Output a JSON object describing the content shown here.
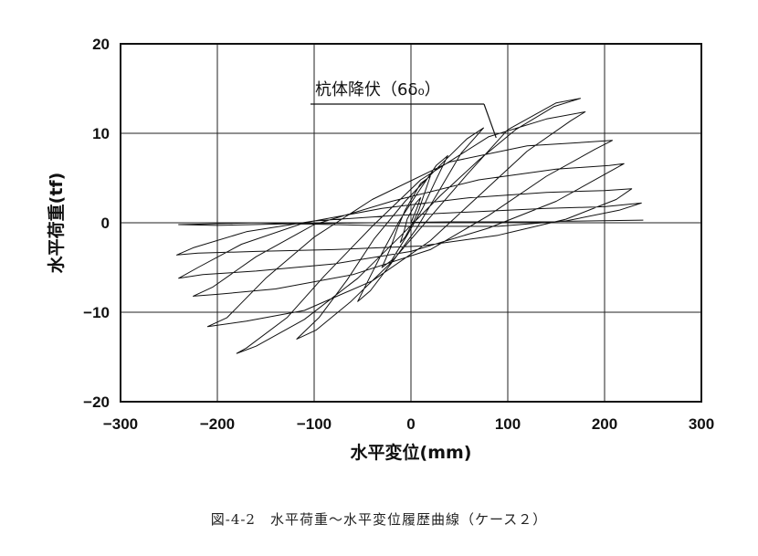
{
  "caption": "図-4-2　水平荷重〜水平変位履歴曲線（ケース２）",
  "chart_data": {
    "type": "line",
    "xlabel": "水平変位(mm)",
    "ylabel": "水平荷重(tf)",
    "xlim": [
      -300,
      300
    ],
    "ylim": [
      -20,
      20
    ],
    "xticks": [
      -300,
      -200,
      -100,
      0,
      100,
      200,
      300
    ],
    "yticks": [
      -20,
      -10,
      0,
      10,
      20
    ],
    "xtick_labels": [
      "−300",
      "−200",
      "−100",
      "0",
      "100",
      "200",
      "300"
    ],
    "ytick_labels": [
      "20",
      "10",
      "0",
      "−10",
      "−20"
    ],
    "grid": true,
    "annotation": {
      "text": "杭体降伏（6δ₀）",
      "point": [
        88,
        9.5
      ]
    },
    "series": [
      {
        "values": [
          [
            0,
            0
          ],
          [
            6,
            1.6
          ],
          [
            10,
            2.8
          ],
          [
            5,
            2.2
          ],
          [
            -4,
            0.4
          ],
          [
            -7,
            -0.9
          ],
          [
            -11,
            -2.2
          ],
          [
            -6,
            -1.6
          ],
          [
            3,
            0.2
          ],
          [
            8,
            1.4
          ],
          [
            13,
            3.0
          ],
          [
            20,
            5.2
          ],
          [
            10,
            4.4
          ],
          [
            -6,
            1.4
          ],
          [
            -14,
            -0.6
          ],
          [
            -21,
            -2.8
          ],
          [
            -30,
            -5.0
          ],
          [
            -20,
            -4.2
          ],
          [
            -4,
            -1.4
          ],
          [
            12,
            1.6
          ],
          [
            25,
            4.6
          ],
          [
            38,
            7.5
          ],
          [
            26,
            6.4
          ],
          [
            6,
            3.2
          ],
          [
            -12,
            0.2
          ],
          [
            -28,
            -3.0
          ],
          [
            -44,
            -6.4
          ],
          [
            -55,
            -8.8
          ],
          [
            -42,
            -7.6
          ],
          [
            -18,
            -4.2
          ],
          [
            6,
            -0.6
          ],
          [
            28,
            3.4
          ],
          [
            52,
            7.8
          ],
          [
            75,
            10.6
          ],
          [
            58,
            9.4
          ],
          [
            28,
            6.2
          ],
          [
            -6,
            2.4
          ],
          [
            -38,
            -1.8
          ],
          [
            -66,
            -6.4
          ],
          [
            -95,
            -10.6
          ],
          [
            -118,
            -13.0
          ],
          [
            -98,
            -12.0
          ],
          [
            -62,
            -8.8
          ],
          [
            -22,
            -4.6
          ],
          [
            18,
            0.4
          ],
          [
            58,
            5.4
          ],
          [
            100,
            10.4
          ],
          [
            150,
            13.4
          ],
          [
            175,
            13.9
          ],
          [
            148,
            13.0
          ],
          [
            108,
            10.4
          ],
          [
            70,
            7.0
          ],
          [
            30,
            3.0
          ],
          [
            -10,
            -1.4
          ],
          [
            -55,
            -6.2
          ],
          [
            -110,
            -10.8
          ],
          [
            -160,
            -13.8
          ],
          [
            -180,
            -14.6
          ],
          [
            -170,
            -14.0
          ],
          [
            -128,
            -10.6
          ],
          [
            -90,
            -6.0
          ],
          [
            -40,
            -0.4
          ],
          [
            10,
            4.8
          ],
          [
            80,
            9.6
          ],
          [
            140,
            11.6
          ],
          [
            180,
            12.4
          ],
          [
            165,
            11.4
          ],
          [
            120,
            8.0
          ],
          [
            70,
            3.0
          ],
          [
            20,
            -2.0
          ],
          [
            -40,
            -6.5
          ],
          [
            -110,
            -9.8
          ],
          [
            -170,
            -11.0
          ],
          [
            -210,
            -11.6
          ],
          [
            -190,
            -10.6
          ],
          [
            -150,
            -6.2
          ],
          [
            -100,
            -1.6
          ],
          [
            -40,
            2.6
          ],
          [
            40,
            6.8
          ],
          [
            120,
            8.6
          ],
          [
            180,
            9.0
          ],
          [
            208,
            9.2
          ],
          [
            190,
            8.2
          ],
          [
            140,
            5.2
          ],
          [
            80,
            0.8
          ],
          [
            20,
            -3.0
          ],
          [
            -60,
            -5.8
          ],
          [
            -140,
            -7.4
          ],
          [
            -200,
            -8.0
          ],
          [
            -225,
            -8.2
          ],
          [
            -205,
            -7.2
          ],
          [
            -160,
            -3.8
          ],
          [
            -100,
            -0.2
          ],
          [
            -20,
            2.4
          ],
          [
            70,
            4.8
          ],
          [
            150,
            6.0
          ],
          [
            205,
            6.4
          ],
          [
            220,
            6.6
          ],
          [
            200,
            5.4
          ],
          [
            150,
            2.4
          ],
          [
            80,
            -0.6
          ],
          [
            0,
            -3.2
          ],
          [
            -80,
            -4.6
          ],
          [
            -160,
            -5.4
          ],
          [
            -215,
            -5.8
          ],
          [
            -240,
            -6.2
          ],
          [
            -220,
            -5.0
          ],
          [
            -175,
            -2.4
          ],
          [
            -110,
            0.0
          ],
          [
            -30,
            1.6
          ],
          [
            60,
            2.8
          ],
          [
            140,
            3.4
          ],
          [
            200,
            3.6
          ],
          [
            228,
            3.8
          ],
          [
            212,
            2.6
          ],
          [
            160,
            0.4
          ],
          [
            90,
            -1.4
          ],
          [
            10,
            -2.6
          ],
          [
            -80,
            -3.0
          ],
          [
            -160,
            -3.2
          ],
          [
            -220,
            -3.4
          ],
          [
            -242,
            -3.6
          ],
          [
            -225,
            -2.8
          ],
          [
            -170,
            -1.0
          ],
          [
            -100,
            0.2
          ],
          [
            -20,
            0.8
          ],
          [
            60,
            1.2
          ],
          [
            140,
            1.6
          ],
          [
            200,
            1.8
          ],
          [
            238,
            2.2
          ],
          [
            215,
            1.4
          ],
          [
            160,
            0.2
          ],
          [
            90,
            -0.4
          ],
          [
            0,
            -0.4
          ],
          [
            -80,
            -0.2
          ],
          [
            -160,
            0.0
          ],
          [
            -240,
            -0.2
          ],
          [
            -200,
            -0.3
          ],
          [
            -120,
            -0.1
          ],
          [
            -40,
            0.0
          ],
          [
            40,
            0.1
          ],
          [
            120,
            0.1
          ],
          [
            240,
            0.3
          ]
        ]
      }
    ]
  }
}
